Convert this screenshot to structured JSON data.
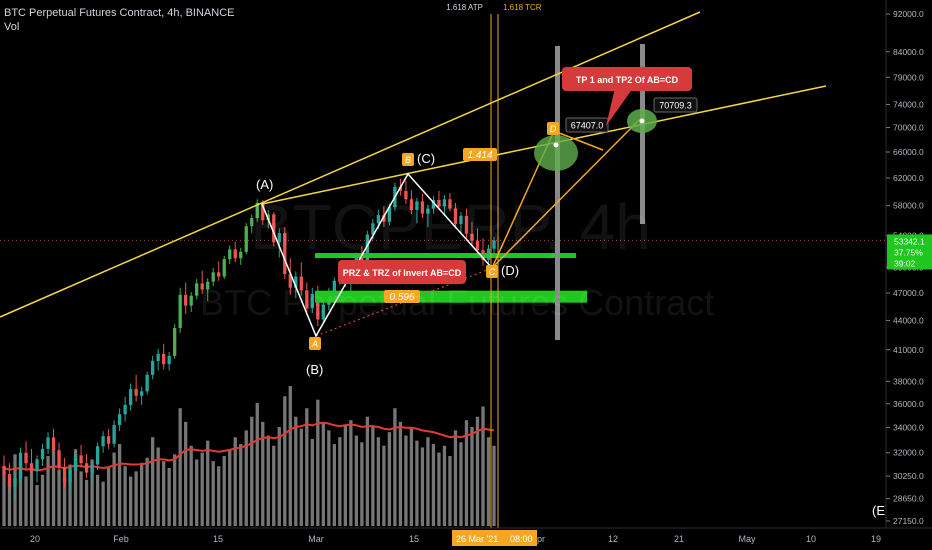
{
  "header": {
    "symbol_line": "BTC Perpetual Futures Contract, 4h, BINANCE",
    "volume_label": "Vol"
  },
  "watermark": {
    "ticker": "BTCPERP, 4h",
    "name": "BTC Perpetual Futures Contract"
  },
  "colors": {
    "background": "#000000",
    "candle_up": "#26a69a",
    "candle_up_bright": "#4caf50",
    "candle_down": "#ef5350",
    "trendline": "#f5d742",
    "pattern_line": "#ffffff",
    "projection_line": "#f5a623",
    "zone_green": "#1ec81e",
    "circle_green": "#5fae4b",
    "callout_red": "#d63a3a",
    "vertical_line": "#f5a623",
    "volume_bar": "#9e9e9e",
    "volume_ma": "#e53935",
    "price_tag_green": "#1ec81e",
    "gray_bar": "#8a8a8a"
  },
  "chart_data": {
    "type": "candlestick",
    "timeframe": "4h",
    "symbol": "BTC Perpetual Futures Contract",
    "exchange": "BINANCE",
    "y_axis": {
      "scale": "log",
      "tick_labels": [
        "92000.0",
        "84000.0",
        "79000.0",
        "74000.0",
        "70000.0",
        "66000.0",
        "62000.0",
        "58000.0",
        "54000.0",
        "50000.0",
        "47000.0",
        "44000.0",
        "41000.0",
        "38000.0",
        "36000.0",
        "34000.0",
        "32000.0",
        "30250.0",
        "28650.0",
        "27150.0"
      ],
      "tick_values": [
        92000,
        84000,
        79000,
        74000,
        70000,
        66000,
        62000,
        58000,
        54000,
        50000,
        47000,
        44000,
        41000,
        38000,
        36000,
        34000,
        32000,
        30250,
        28650,
        27150
      ],
      "range": [
        26500,
        96000
      ]
    },
    "x_axis": {
      "tick_labels": [
        "20",
        "Feb",
        "15",
        "Mar",
        "15",
        "Apr",
        "12",
        "21",
        "May",
        "10",
        "19"
      ],
      "cursor_label": "26 Mar '21",
      "cursor_time": "08:00"
    },
    "price_scale_tags": [
      {
        "text": "53342.1",
        "price": 53342.1
      },
      {
        "text": "37.75%",
        "price": 51900
      },
      {
        "text": "39:02",
        "price": 50500
      }
    ],
    "top_labels": [
      "1.618 ATP",
      "1.618 TCR"
    ],
    "pattern_points": [
      {
        "label": "A",
        "sub_label": "(B)",
        "price": 42500
      },
      {
        "label": "B",
        "sub_label": "(C)",
        "price": 61500
      },
      {
        "label": "C",
        "sub_label": "(D)",
        "price": 50200
      },
      {
        "label": "D",
        "price": 67407.0
      }
    ],
    "peak_label": "(A)",
    "corner_label": "(E)",
    "ratios": [
      {
        "text": "1.414"
      },
      {
        "text": "0.596"
      }
    ],
    "targets": [
      {
        "text": "67407.0",
        "price": 67407.0
      },
      {
        "text": "70709.3",
        "price": 70709.3
      }
    ],
    "callouts": [
      {
        "text": "TP 1 and TP2 Of AB=CD"
      },
      {
        "text": "PRZ & TRZ of Invert AB=CD"
      }
    ],
    "zones": [
      {
        "type": "support",
        "price": 51500
      },
      {
        "type": "support",
        "price": 46700
      }
    ],
    "candles": [
      [
        31000,
        31800,
        29900,
        30400
      ],
      [
        30400,
        31200,
        29000,
        29500
      ],
      [
        29500,
        30500,
        28600,
        30100
      ],
      [
        30100,
        32400,
        29800,
        32000
      ],
      [
        32000,
        32900,
        30700,
        31200
      ],
      [
        31200,
        32300,
        30200,
        30600
      ],
      [
        30600,
        31800,
        29800,
        31500
      ],
      [
        31500,
        32700,
        31000,
        32300
      ],
      [
        32300,
        33600,
        31900,
        33200
      ],
      [
        33200,
        33900,
        31800,
        32200
      ],
      [
        32200,
        32800,
        30400,
        30900
      ],
      [
        30900,
        31600,
        29400,
        29800
      ],
      [
        29800,
        31000,
        29100,
        30700
      ],
      [
        30700,
        32100,
        30100,
        31800
      ],
      [
        31800,
        32600,
        30900,
        31200
      ],
      [
        31200,
        31900,
        30100,
        30500
      ],
      [
        30500,
        31400,
        29600,
        31100
      ],
      [
        31100,
        32800,
        30700,
        32500
      ],
      [
        32500,
        33700,
        32000,
        33300
      ],
      [
        33300,
        33900,
        32300,
        32700
      ],
      [
        32700,
        34600,
        32400,
        34200
      ],
      [
        34200,
        35600,
        33700,
        35100
      ],
      [
        35100,
        36600,
        34500,
        35900
      ],
      [
        35900,
        37800,
        35400,
        37300
      ],
      [
        37300,
        38600,
        36200,
        36700
      ],
      [
        36700,
        37500,
        35900,
        37100
      ],
      [
        37100,
        38900,
        36800,
        38600
      ],
      [
        38600,
        40400,
        38200,
        39900
      ],
      [
        39900,
        41100,
        39000,
        40600
      ],
      [
        40600,
        41600,
        39100,
        39600
      ],
      [
        39600,
        40800,
        39000,
        40400
      ],
      [
        40400,
        43600,
        40100,
        43200
      ],
      [
        43200,
        47600,
        42700,
        46800
      ],
      [
        46800,
        48200,
        44700,
        45600
      ],
      [
        45600,
        47100,
        44900,
        46700
      ],
      [
        46700,
        48600,
        46300,
        48100
      ],
      [
        48100,
        49600,
        46900,
        47400
      ],
      [
        47400,
        48700,
        46100,
        48300
      ],
      [
        48300,
        49900,
        47800,
        49400
      ],
      [
        49400,
        50700,
        48400,
        48900
      ],
      [
        48900,
        51400,
        48600,
        51000
      ],
      [
        51000,
        52700,
        50400,
        52200
      ],
      [
        52200,
        53200,
        50600,
        51100
      ],
      [
        51100,
        52400,
        50300,
        51900
      ],
      [
        51900,
        55600,
        51600,
        55200
      ],
      [
        55200,
        56800,
        54300,
        56300
      ],
      [
        56300,
        58900,
        55800,
        58400
      ],
      [
        58400,
        58800,
        55400,
        56000
      ],
      [
        56000,
        57400,
        54900,
        56800
      ],
      [
        56800,
        57100,
        52600,
        53100
      ],
      [
        53100,
        54900,
        51200,
        54300
      ],
      [
        54300,
        55100,
        48600,
        49200
      ],
      [
        49200,
        51100,
        46800,
        47600
      ],
      [
        47600,
        49500,
        46400,
        48900
      ],
      [
        48900,
        50600,
        46700,
        47300
      ],
      [
        47300,
        48200,
        44600,
        45300
      ],
      [
        45300,
        47600,
        44800,
        46900
      ],
      [
        46900,
        47800,
        43400,
        44100
      ],
      [
        44100,
        46100,
        43700,
        45700
      ],
      [
        45700,
        47600,
        45100,
        46900
      ],
      [
        46900,
        48800,
        45800,
        48400
      ],
      [
        48400,
        50300,
        47900,
        49800
      ],
      [
        49800,
        50700,
        47700,
        48200
      ],
      [
        48200,
        49600,
        46800,
        49100
      ],
      [
        49100,
        51800,
        48700,
        51300
      ],
      [
        51300,
        52600,
        49800,
        50400
      ],
      [
        50400,
        54600,
        50100,
        54100
      ],
      [
        54100,
        56200,
        53500,
        55600
      ],
      [
        55600,
        57400,
        54800,
        56700
      ],
      [
        56700,
        57900,
        55100,
        55800
      ],
      [
        55800,
        58300,
        55300,
        57800
      ],
      [
        57800,
        61300,
        57300,
        60700
      ],
      [
        60700,
        61900,
        59400,
        60100
      ],
      [
        60100,
        61600,
        58200,
        58900
      ],
      [
        58900,
        60200,
        56800,
        57400
      ],
      [
        57400,
        59100,
        55600,
        58600
      ],
      [
        58600,
        59700,
        56300,
        56900
      ],
      [
        56900,
        58100,
        55100,
        57600
      ],
      [
        57600,
        59400,
        56900,
        58800
      ],
      [
        58800,
        60100,
        57400,
        57900
      ],
      [
        57900,
        59500,
        56600,
        58900
      ],
      [
        58900,
        59800,
        57200,
        57600
      ],
      [
        57600,
        58400,
        54900,
        55500
      ],
      [
        55500,
        57100,
        54300,
        56600
      ],
      [
        56600,
        57600,
        53600,
        54200
      ],
      [
        54200,
        55800,
        52700,
        53300
      ],
      [
        53300,
        54900,
        51600,
        52100
      ],
      [
        52100,
        53600,
        50200,
        50900
      ],
      [
        50900,
        52800,
        50300,
        52300
      ],
      [
        52300,
        53800,
        51400,
        53342
      ]
    ],
    "volume": [
      310,
      260,
      420,
      380,
      290,
      350,
      240,
      300,
      410,
      460,
      330,
      280,
      360,
      450,
      320,
      270,
      390,
      300,
      260,
      340,
      430,
      480,
      350,
      290,
      320,
      370,
      400,
      520,
      460,
      380,
      340,
      420,
      690,
      610,
      470,
      390,
      430,
      500,
      380,
      350,
      410,
      450,
      520,
      480,
      560,
      640,
      720,
      610,
      530,
      470,
      580,
      760,
      820,
      640,
      570,
      690,
      510,
      740,
      600,
      560,
      480,
      520,
      590,
      620,
      530,
      490,
      640,
      580,
      520,
      470,
      550,
      690,
      610,
      530,
      580,
      500,
      460,
      520,
      480,
      430,
      470,
      410,
      560,
      490,
      620,
      580,
      640,
      700,
      520,
      470
    ],
    "volume_ma": [
      340,
      330,
      335,
      340,
      330,
      335,
      325,
      330,
      340,
      350,
      345,
      340,
      345,
      355,
      350,
      345,
      350,
      345,
      340,
      345,
      355,
      365,
      365,
      360,
      360,
      362,
      368,
      380,
      390,
      390,
      385,
      390,
      420,
      445,
      450,
      445,
      440,
      445,
      440,
      435,
      440,
      445,
      455,
      460,
      470,
      485,
      505,
      515,
      520,
      515,
      520,
      540,
      565,
      580,
      585,
      595,
      590,
      600,
      605,
      600,
      590,
      585,
      590,
      595,
      590,
      580,
      585,
      585,
      580,
      570,
      565,
      575,
      580,
      575,
      575,
      570,
      560,
      555,
      550,
      540,
      530,
      520,
      525,
      520,
      530,
      540,
      555,
      570,
      565,
      560
    ]
  }
}
